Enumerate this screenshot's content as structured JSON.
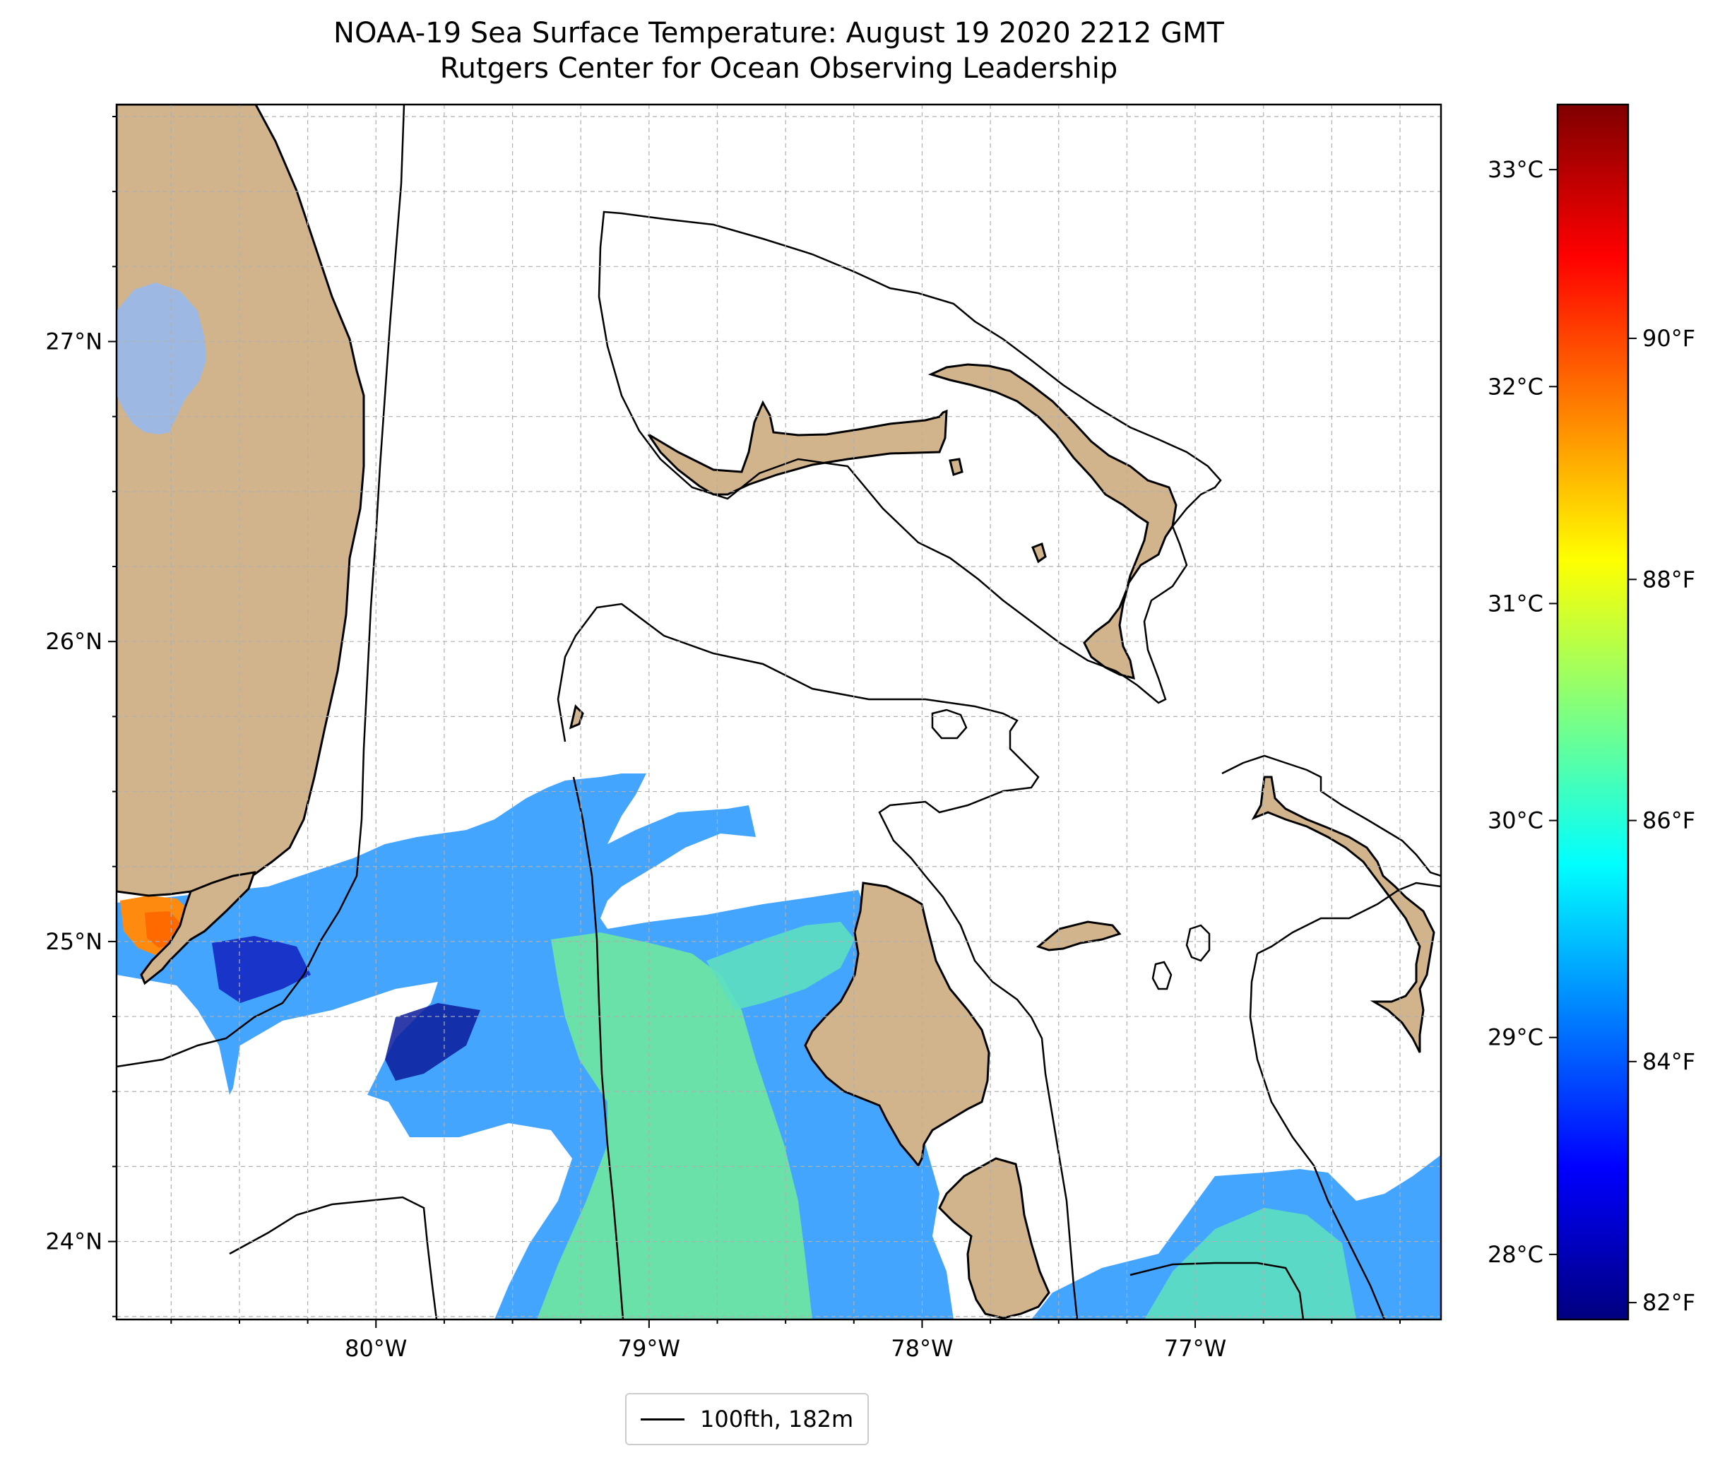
{
  "map": {
    "title_line1": "NOAA-19 Sea Surface Temperature: August 19 2020 2212 GMT",
    "title_line2": "Rutgers Center for Ocean Observing Leadership",
    "extent": {
      "lon_min": -80.95,
      "lon_max": -76.1,
      "lat_min": 23.74,
      "lat_max": 27.79
    },
    "lat_ticks": [
      {
        "value": 27,
        "label": "27°N"
      },
      {
        "value": 26,
        "label": "26°N"
      },
      {
        "value": 25,
        "label": "25°N"
      },
      {
        "value": 24,
        "label": "24°N"
      }
    ],
    "lon_ticks": [
      {
        "value": -80,
        "label": "80°W"
      },
      {
        "value": -79,
        "label": "79°W"
      },
      {
        "value": -78,
        "label": "78°W"
      },
      {
        "value": -77,
        "label": "77°W"
      }
    ],
    "colors": {
      "land": "#d2b48c",
      "lake": "#9db9e3",
      "grid": "#b0b0b0",
      "contour": "#000000"
    },
    "features": [
      "Florida peninsula",
      "Lake Okeechobee",
      "Florida Keys",
      "Grand Bahama",
      "Great Abaco",
      "Bimini",
      "Andros Island",
      "Eleuthera",
      "New Providence"
    ],
    "sst_layer": "jet-colormapped sea surface temperature, valid pixels concentrated in the Straits of Florida and south of Grand Bahama Bank"
  },
  "colorbar": {
    "celsius_range": [
      27.7,
      33.3
    ],
    "colormap": "jet",
    "colormap_stops": [
      "#00007f",
      "#0000ff",
      "#007fff",
      "#00ffff",
      "#7fff7f",
      "#ffff00",
      "#ff7f00",
      "#ff0000",
      "#7f0000"
    ],
    "celsius_ticks": [
      {
        "value": 28,
        "label": "28°C"
      },
      {
        "value": 29,
        "label": "29°C"
      },
      {
        "value": 30,
        "label": "30°C"
      },
      {
        "value": 31,
        "label": "31°C"
      },
      {
        "value": 32,
        "label": "32°C"
      },
      {
        "value": 33,
        "label": "33°C"
      }
    ],
    "fahrenheit_ticks": [
      {
        "value": 82,
        "label": "82°F"
      },
      {
        "value": 84,
        "label": "84°F"
      },
      {
        "value": 86,
        "label": "86°F"
      },
      {
        "value": 88,
        "label": "88°F"
      },
      {
        "value": 90,
        "label": "90°F"
      }
    ]
  },
  "legend": {
    "label": "100fth, 182m"
  }
}
